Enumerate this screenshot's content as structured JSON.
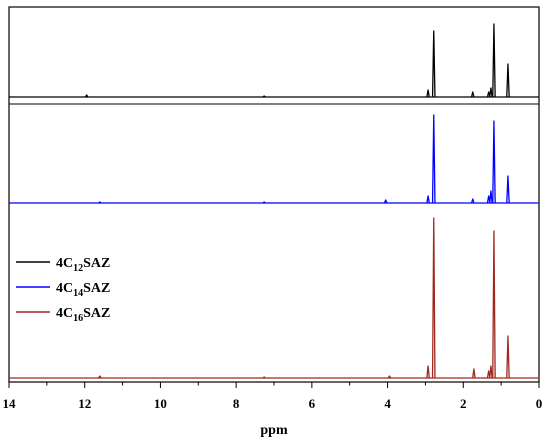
{
  "chart_data": {
    "type": "line",
    "title": "",
    "xlabel": "ppm",
    "ylabel": "",
    "xlim": [
      14,
      0
    ],
    "x_reversed": true,
    "x_ticks": [
      "14",
      "12",
      "10",
      "8",
      "6",
      "4",
      "2",
      "0"
    ],
    "grid": false,
    "legend_position": "left",
    "series": [
      {
        "name": "4C12SAZ",
        "legend": {
          "base": "4C",
          "sub": "12",
          "suffix": "SAZ"
        },
        "color": "#000000",
        "peaks": [
          {
            "ppm": 11.95,
            "height": 2
          },
          {
            "ppm": 7.26,
            "height": 1
          },
          {
            "ppm": 2.93,
            "height": 7
          },
          {
            "ppm": 2.78,
            "height": 66
          },
          {
            "ppm": 1.75,
            "height": 5
          },
          {
            "ppm": 1.33,
            "height": 5
          },
          {
            "ppm": 1.27,
            "height": 9
          },
          {
            "ppm": 1.19,
            "height": 73
          },
          {
            "ppm": 0.82,
            "height": 33
          }
        ]
      },
      {
        "name": "4C14SAZ",
        "legend": {
          "base": "4C",
          "sub": "14",
          "suffix": "SAZ"
        },
        "color": "#0000ff",
        "peaks": [
          {
            "ppm": 11.6,
            "height": 1
          },
          {
            "ppm": 7.26,
            "height": 1
          },
          {
            "ppm": 4.05,
            "height": 3
          },
          {
            "ppm": 2.93,
            "height": 7
          },
          {
            "ppm": 2.78,
            "height": 88
          },
          {
            "ppm": 1.75,
            "height": 4
          },
          {
            "ppm": 1.33,
            "height": 7
          },
          {
            "ppm": 1.27,
            "height": 12
          },
          {
            "ppm": 1.19,
            "height": 82
          },
          {
            "ppm": 0.82,
            "height": 27
          }
        ]
      },
      {
        "name": "4C16SAZ",
        "legend": {
          "base": "4C",
          "sub": "16",
          "suffix": "SAZ"
        },
        "color": "#a0281e",
        "peaks": [
          {
            "ppm": 11.6,
            "height": 2
          },
          {
            "ppm": 7.26,
            "height": 1
          },
          {
            "ppm": 3.95,
            "height": 2
          },
          {
            "ppm": 2.93,
            "height": 12
          },
          {
            "ppm": 2.78,
            "height": 160
          },
          {
            "ppm": 1.72,
            "height": 9
          },
          {
            "ppm": 1.33,
            "height": 7
          },
          {
            "ppm": 1.27,
            "height": 12
          },
          {
            "ppm": 1.19,
            "height": 147
          },
          {
            "ppm": 0.82,
            "height": 42
          }
        ]
      }
    ]
  }
}
